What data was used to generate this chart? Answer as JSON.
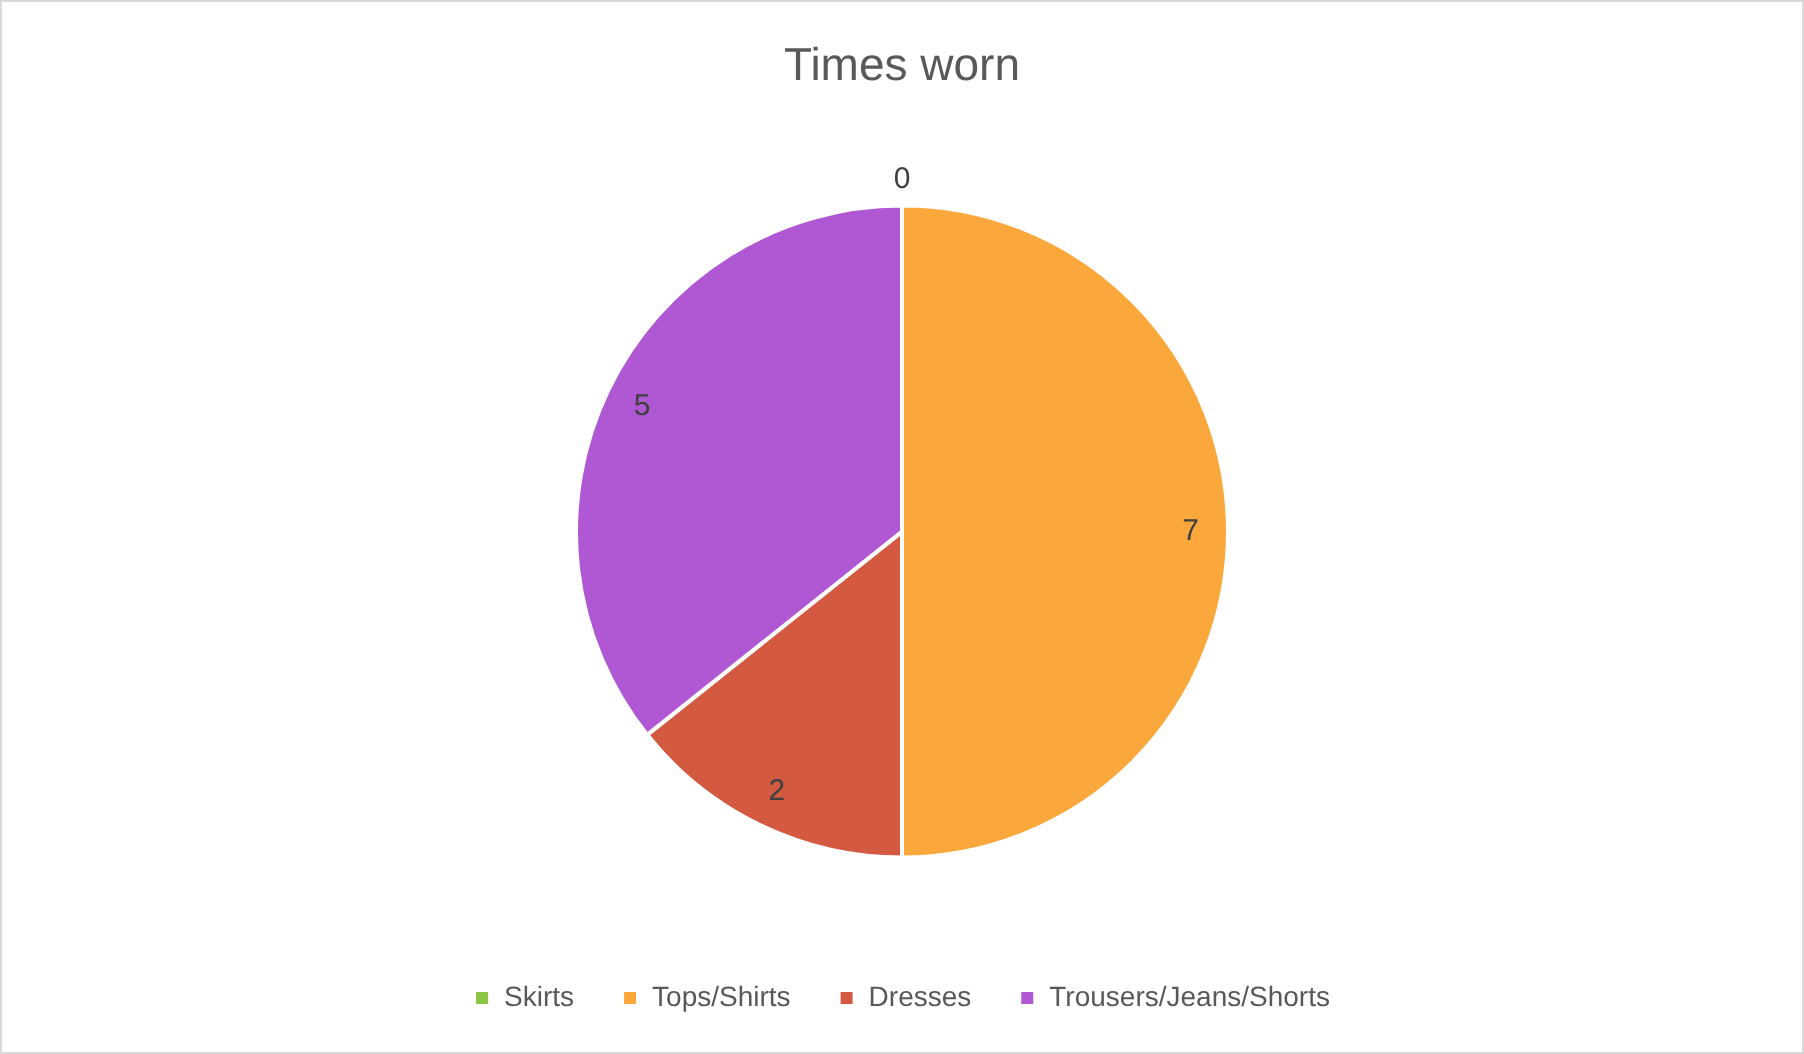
{
  "chart_data": {
    "type": "pie",
    "title": "Times worn",
    "categories": [
      "Skirts",
      "Tops/Shirts",
      "Dresses",
      "Trousers/Jeans/Shorts"
    ],
    "values": [
      0,
      7,
      2,
      5
    ],
    "value_labels": [
      "0",
      "7",
      "2",
      "5"
    ],
    "colors": [
      "#8cc443",
      "#faa73c",
      "#d35a40",
      "#b057d3"
    ],
    "legend": "bottom"
  }
}
